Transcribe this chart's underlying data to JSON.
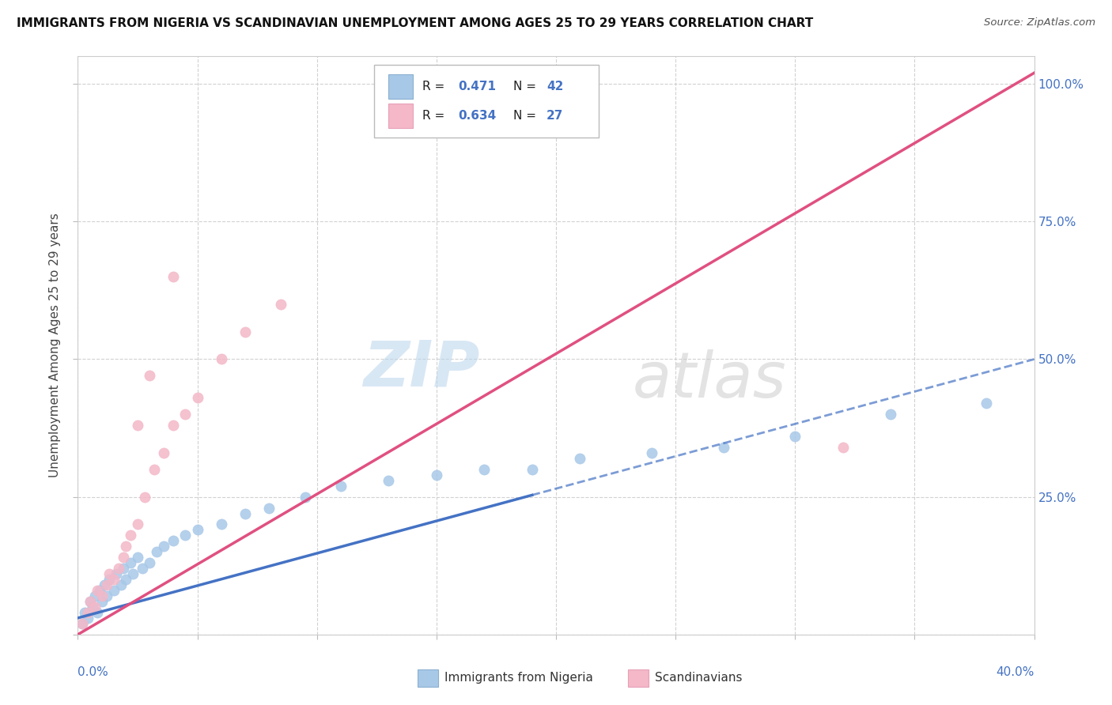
{
  "title": "IMMIGRANTS FROM NIGERIA VS SCANDINAVIAN UNEMPLOYMENT AMONG AGES 25 TO 29 YEARS CORRELATION CHART",
  "source": "Source: ZipAtlas.com",
  "x_min": 0.0,
  "x_max": 0.4,
  "y_min": 0.0,
  "y_max": 1.05,
  "nigeria_color": "#a8c8e8",
  "scandinavia_color": "#f4b8c8",
  "nigeria_line_color": "#4472c4",
  "scandinavia_line_color": "#e05080",
  "watermark_zip_color": "#c8dff0",
  "watermark_atlas_color": "#c8c8c8",
  "background_color": "#ffffff",
  "nigeria_x": [
    0.002,
    0.003,
    0.004,
    0.005,
    0.006,
    0.007,
    0.008,
    0.009,
    0.01,
    0.011,
    0.012,
    0.013,
    0.015,
    0.016,
    0.018,
    0.019,
    0.02,
    0.022,
    0.023,
    0.025,
    0.027,
    0.03,
    0.033,
    0.036,
    0.04,
    0.045,
    0.05,
    0.06,
    0.07,
    0.08,
    0.095,
    0.11,
    0.13,
    0.15,
    0.17,
    0.19,
    0.21,
    0.24,
    0.27,
    0.3,
    0.34,
    0.38
  ],
  "nigeria_y": [
    0.02,
    0.04,
    0.03,
    0.06,
    0.05,
    0.07,
    0.04,
    0.08,
    0.06,
    0.09,
    0.07,
    0.1,
    0.08,
    0.11,
    0.09,
    0.12,
    0.1,
    0.13,
    0.11,
    0.14,
    0.12,
    0.13,
    0.15,
    0.16,
    0.17,
    0.18,
    0.19,
    0.2,
    0.22,
    0.23,
    0.25,
    0.27,
    0.28,
    0.29,
    0.3,
    0.3,
    0.32,
    0.33,
    0.34,
    0.36,
    0.4,
    0.42
  ],
  "scandinavia_x": [
    0.002,
    0.004,
    0.005,
    0.007,
    0.008,
    0.01,
    0.012,
    0.013,
    0.015,
    0.017,
    0.019,
    0.02,
    0.022,
    0.025,
    0.028,
    0.032,
    0.036,
    0.04,
    0.045,
    0.05,
    0.06,
    0.07,
    0.085,
    0.04,
    0.03,
    0.025,
    0.32
  ],
  "scandinavia_y": [
    0.02,
    0.04,
    0.06,
    0.05,
    0.08,
    0.07,
    0.09,
    0.11,
    0.1,
    0.12,
    0.14,
    0.16,
    0.18,
    0.2,
    0.25,
    0.3,
    0.33,
    0.38,
    0.4,
    0.43,
    0.5,
    0.55,
    0.6,
    0.65,
    0.47,
    0.38,
    0.34
  ],
  "nigeria_trend_x": [
    0.0,
    0.4
  ],
  "nigeria_trend_y": [
    0.03,
    0.5
  ],
  "scandinavia_trend_x": [
    0.0,
    0.4
  ],
  "scandinavia_trend_y": [
    0.0,
    1.02
  ],
  "legend_label1": "Immigrants from Nigeria",
  "legend_label2": "Scandinavians"
}
